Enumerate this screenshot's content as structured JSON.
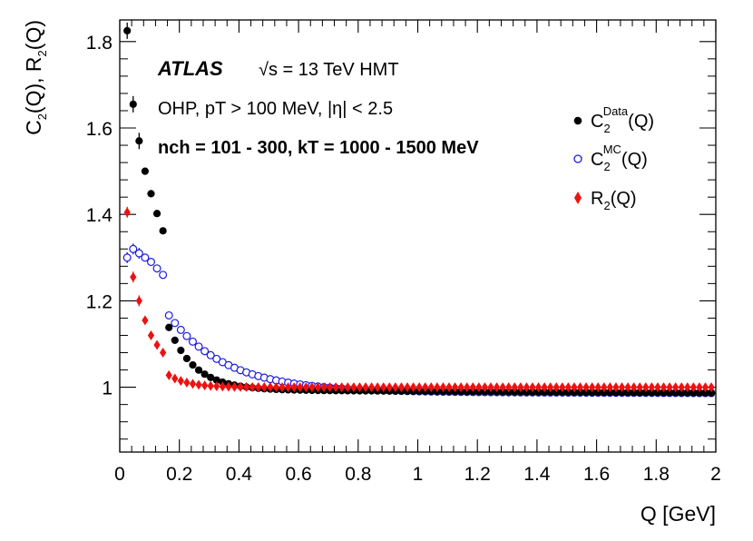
{
  "chart_data": {
    "type": "scatter",
    "xlabel": "Q [GeV]",
    "ylabel": "C2(Q), R2(Q)",
    "xlim": [
      0,
      2
    ],
    "ylim": [
      0.85,
      1.85
    ],
    "x_ticks": [
      "0",
      "0.2",
      "0.4",
      "0.6",
      "0.8",
      "1",
      "1.2",
      "1.4",
      "1.6",
      "1.8",
      "2"
    ],
    "y_ticks": [
      "1",
      "1.2",
      "1.4",
      "1.6",
      "1.8"
    ],
    "annotations": {
      "brand": "ATLAS",
      "energy": "√s = 13 TeV HMT",
      "selection": "OHP, pT > 100 MeV, |η| < 2.5",
      "multiplicity": "nch = 101 - 300, kT = 1000 - 1500 MeV"
    },
    "legend_placement": "top-right",
    "series": [
      {
        "name": "C2Data(Q)",
        "marker": "filled-circle",
        "color": "#000000",
        "model": {
          "base": 0.99,
          "amp": 0.95,
          "scale": 0.0875
        },
        "leading_points": [
          [
            0.025,
            1.825
          ],
          [
            0.045,
            1.655
          ],
          [
            0.065,
            1.57
          ],
          [
            0.085,
            1.5
          ],
          [
            0.105,
            1.448
          ],
          [
            0.125,
            1.402
          ],
          [
            0.145,
            1.362
          ]
        ]
      },
      {
        "name": "C2MC(Q)",
        "marker": "open-circle",
        "color": "#1a1adf",
        "model": {
          "base": 0.988,
          "amp": 0.42,
          "scale": 0.19
        },
        "leading_points": [
          [
            0.025,
            1.3
          ],
          [
            0.045,
            1.32
          ],
          [
            0.065,
            1.31
          ],
          [
            0.085,
            1.3
          ],
          [
            0.105,
            1.29
          ],
          [
            0.125,
            1.275
          ],
          [
            0.145,
            1.26
          ]
        ]
      },
      {
        "name": "R2(Q)",
        "marker": "filled-diamond",
        "color": "#ee1111",
        "model": {
          "base": 1.0,
          "amp": 0.38,
          "scale": 0.063
        },
        "leading_points": [
          [
            0.025,
            1.405
          ],
          [
            0.045,
            1.255
          ],
          [
            0.065,
            1.2
          ],
          [
            0.085,
            1.155
          ],
          [
            0.105,
            1.12
          ],
          [
            0.125,
            1.098
          ],
          [
            0.145,
            1.08
          ]
        ]
      }
    ],
    "x_step": 0.02,
    "x_start": 0.025,
    "x_end": 1.995
  },
  "legend": {
    "data_C": "C",
    "data_sub": "2",
    "data_sup": "Data",
    "data_tail": "(Q)",
    "mc_C": "C",
    "mc_sub": "2",
    "mc_sup": "MC",
    "mc_tail": "(Q)",
    "r_R": "R",
    "r_sub": "2",
    "r_tail": "(Q)"
  },
  "colors": {
    "data": "#000000",
    "mc": "#1a1adf",
    "r2": "#ee1111"
  }
}
